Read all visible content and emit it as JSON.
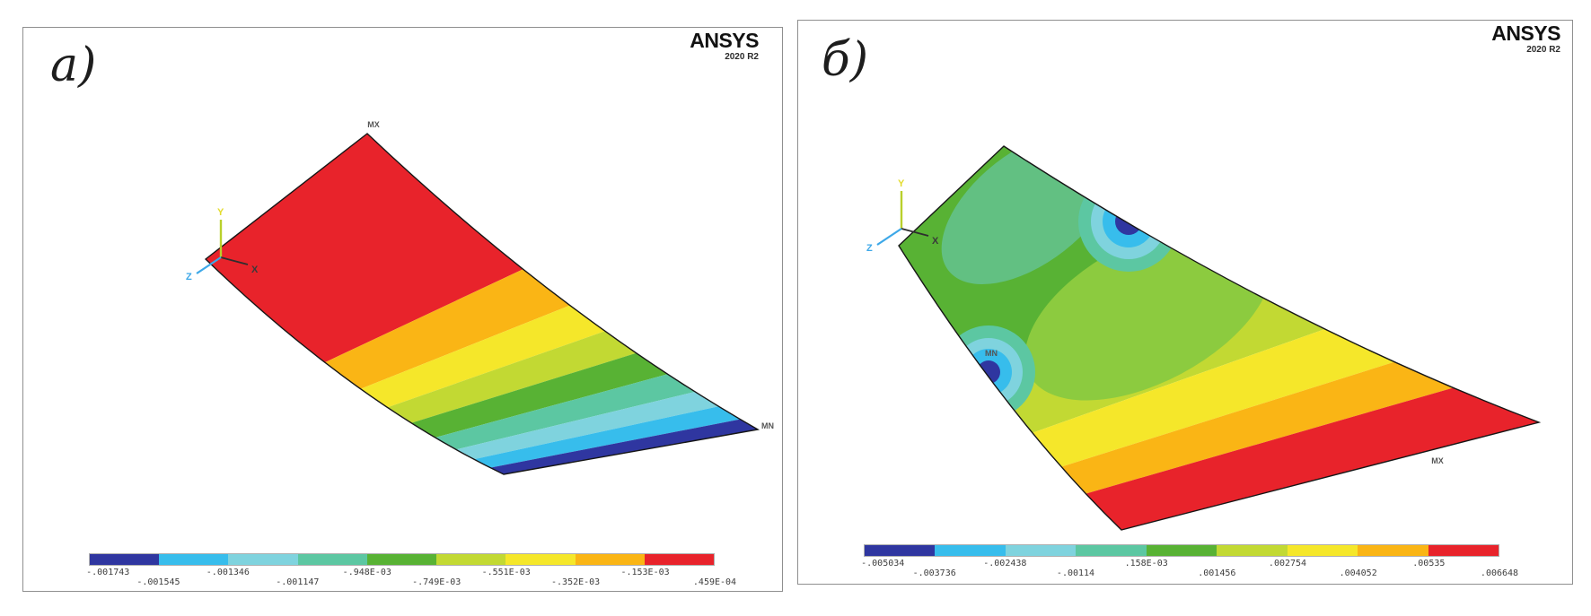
{
  "branding": {
    "name": "ANSYS",
    "version": "2020 R2"
  },
  "panels": [
    {
      "label": "a)",
      "max_label": "MX",
      "min_label": "MN",
      "axis_triad": {
        "x": "X",
        "y": "Y",
        "z": "Z"
      },
      "legend": {
        "values": [
          "-.001743",
          "-.001545",
          "-.001346",
          "-.001147",
          "-.948E-03",
          "-.749E-03",
          "-.551E-03",
          "-.352E-03",
          "-.153E-03",
          ".459E-04"
        ]
      }
    },
    {
      "label": "б)",
      "max_label": "MX",
      "min_label": "MN",
      "axis_triad": {
        "x": "X",
        "y": "Y",
        "z": "Z"
      },
      "legend": {
        "values": [
          "-.005034",
          "-.003736",
          "-.002438",
          "-.00114",
          ".158E-03",
          ".001456",
          ".002754",
          ".004052",
          ".00535",
          ".006648"
        ]
      }
    }
  ],
  "colors": {
    "contour_scale": [
      "#2f36a0",
      "#37bdec",
      "#7fd3de",
      "#5cc7a2",
      "#58b234",
      "#c2d933",
      "#f5e72a",
      "#fab515",
      "#e8232b"
    ]
  },
  "chart_data": [
    {
      "type": "heatmap",
      "title": "a)",
      "software": "ANSYS 2020 R2",
      "legend_labels": [
        "-.001743",
        "-.001545",
        "-.001346",
        "-.001147",
        "-.948E-03",
        "-.749E-03",
        "-.551E-03",
        "-.352E-03",
        "-.153E-03",
        ".459E-04"
      ],
      "legend_values": [
        -0.001743,
        -0.001545,
        -0.001346,
        -0.001147,
        -0.000948,
        -0.000749,
        -0.000551,
        -0.000352,
        -0.000153,
        4.59e-05
      ],
      "value_range": [
        -0.001743,
        4.59e-05
      ],
      "palette": [
        "#2f36a0",
        "#37bdec",
        "#7fd3de",
        "#5cc7a2",
        "#58b234",
        "#c2d933",
        "#f5e72a",
        "#fab515",
        "#e8232b"
      ],
      "annotations": [
        "MX",
        "MN"
      ],
      "legend_position": "bottom",
      "layout": "Isometric deformed plate; nine uniform contour bands from maximum (red, MX at upper-left edge) to minimum (dark blue, MN at lower-right tip); bands parallel to short edge"
    },
    {
      "type": "heatmap",
      "title": "б)",
      "software": "ANSYS 2020 R2",
      "legend_labels": [
        "-.005034",
        "-.003736",
        "-.002438",
        "-.00114",
        ".158E-03",
        ".001456",
        ".002754",
        ".004052",
        ".00535",
        ".006648"
      ],
      "legend_values": [
        -0.005034,
        -0.003736,
        -0.002438,
        -0.00114,
        0.000158,
        0.001456,
        0.002754,
        0.004052,
        0.00535,
        0.006648
      ],
      "value_range": [
        -0.005034,
        0.006648
      ],
      "palette": [
        "#2f36a0",
        "#37bdec",
        "#7fd3de",
        "#5cc7a2",
        "#58b234",
        "#c2d933",
        "#f5e72a",
        "#fab515",
        "#e8232b"
      ],
      "annotations": [
        "MX",
        "MN"
      ],
      "legend_position": "bottom",
      "layout": "Isometric deformed plate; green field with two local minima dimples (concentric cyan/blue rings, MN at left dimple) and yellow-orange-red bands toward lower-right (MX in red zone)"
    }
  ]
}
